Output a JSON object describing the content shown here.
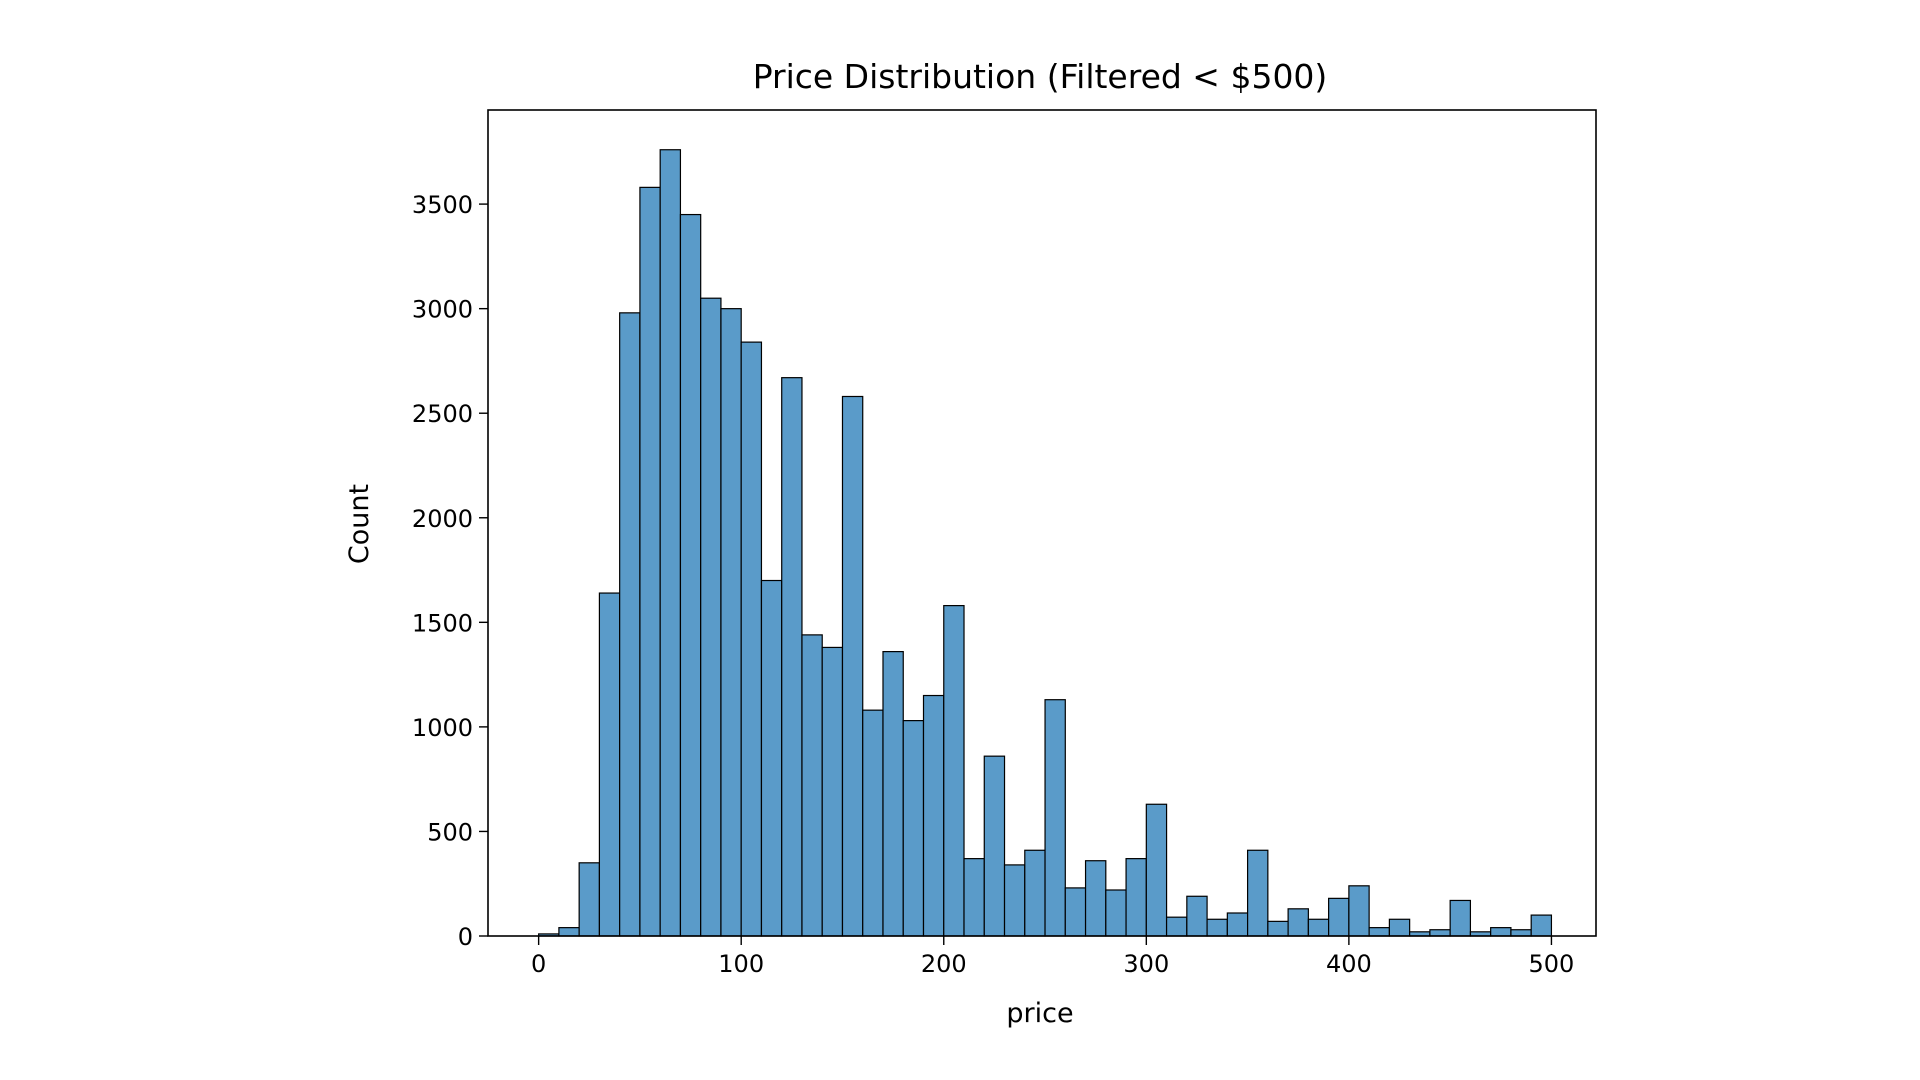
{
  "chart_data": {
    "type": "bar",
    "title": "Price Distribution (Filtered < $500)",
    "xlabel": "price",
    "ylabel": "Count",
    "xlim": [
      -25,
      522
    ],
    "ylim": [
      0,
      3950
    ],
    "grid": false,
    "xticks": [
      "0",
      "100",
      "200",
      "300",
      "400",
      "500"
    ],
    "yticks": [
      "0",
      "500",
      "1000",
      "1500",
      "2000",
      "2500",
      "3000",
      "3500"
    ],
    "bin_width": 10,
    "bins_start": 0,
    "values": [
      10,
      40,
      350,
      1640,
      2980,
      3580,
      3760,
      3450,
      3050,
      3000,
      2840,
      1700,
      2670,
      1440,
      1380,
      2580,
      1080,
      1360,
      1030,
      1150,
      1580,
      370,
      860,
      340,
      410,
      1130,
      230,
      360,
      220,
      370,
      630,
      90,
      190,
      80,
      110,
      410,
      70,
      130,
      80,
      180,
      240,
      40,
      80,
      20,
      30,
      170,
      20,
      40,
      30,
      100
    ],
    "colors": {
      "bar_fill": "#5a9bc9",
      "bar_edge": "#000000",
      "axes": "#000000"
    }
  }
}
